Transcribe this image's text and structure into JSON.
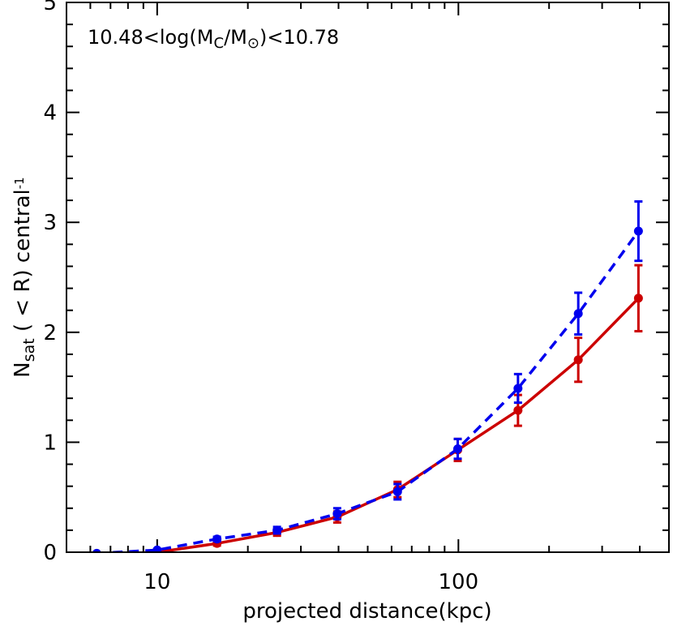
{
  "chart_data": {
    "type": "line",
    "annotation": {
      "prefix": "10.48<log(M",
      "sub1": "C",
      "middle": "/M",
      "sub2": "⊙",
      "suffix": ")<10.78"
    },
    "xlabel": "projected distance(kpc)",
    "ylabel": {
      "main": "N",
      "sub": "sat",
      "rest": " ( < R) central",
      "sup": "-1"
    },
    "xscale": "log",
    "xlim": [
      5,
      500
    ],
    "ylim": [
      0,
      5
    ],
    "x_ticks": [
      {
        "value": 10,
        "label": "10"
      },
      {
        "value": 100,
        "label": "100"
      }
    ],
    "y_ticks": [
      {
        "value": 0,
        "label": "0"
      },
      {
        "value": 1,
        "label": "1"
      },
      {
        "value": 2,
        "label": "2"
      },
      {
        "value": 3,
        "label": "3"
      },
      {
        "value": 4,
        "label": "4"
      },
      {
        "value": 5,
        "label": "5"
      }
    ],
    "series": [
      {
        "color": "#cc0000",
        "style": "solid",
        "points": [
          {
            "x": 6.3,
            "y": -0.02,
            "err": 0.0
          },
          {
            "x": 10,
            "y": 0.0,
            "err": 0.01
          },
          {
            "x": 15.8,
            "y": 0.08,
            "err": 0.02
          },
          {
            "x": 25,
            "y": 0.18,
            "err": 0.03
          },
          {
            "x": 39.6,
            "y": 0.32,
            "err": 0.05
          },
          {
            "x": 62.8,
            "y": 0.57,
            "err": 0.07
          },
          {
            "x": 99.5,
            "y": 0.93,
            "err": 0.1
          },
          {
            "x": 157.7,
            "y": 1.29,
            "err": 0.14
          },
          {
            "x": 250,
            "y": 1.75,
            "err": 0.2
          },
          {
            "x": 396,
            "y": 2.31,
            "err": 0.3
          }
        ]
      },
      {
        "color": "#0000ee",
        "style": "dashed",
        "points": [
          {
            "x": 6.3,
            "y": -0.01,
            "err": 0.0
          },
          {
            "x": 10,
            "y": 0.02,
            "err": 0.01
          },
          {
            "x": 15.8,
            "y": 0.12,
            "err": 0.02
          },
          {
            "x": 25,
            "y": 0.2,
            "err": 0.03
          },
          {
            "x": 39.6,
            "y": 0.35,
            "err": 0.05
          },
          {
            "x": 62.8,
            "y": 0.55,
            "err": 0.07
          },
          {
            "x": 99.5,
            "y": 0.94,
            "err": 0.09
          },
          {
            "x": 157.7,
            "y": 1.49,
            "err": 0.13
          },
          {
            "x": 250,
            "y": 2.17,
            "err": 0.19
          },
          {
            "x": 396,
            "y": 2.92,
            "err": 0.27
          }
        ]
      }
    ]
  }
}
